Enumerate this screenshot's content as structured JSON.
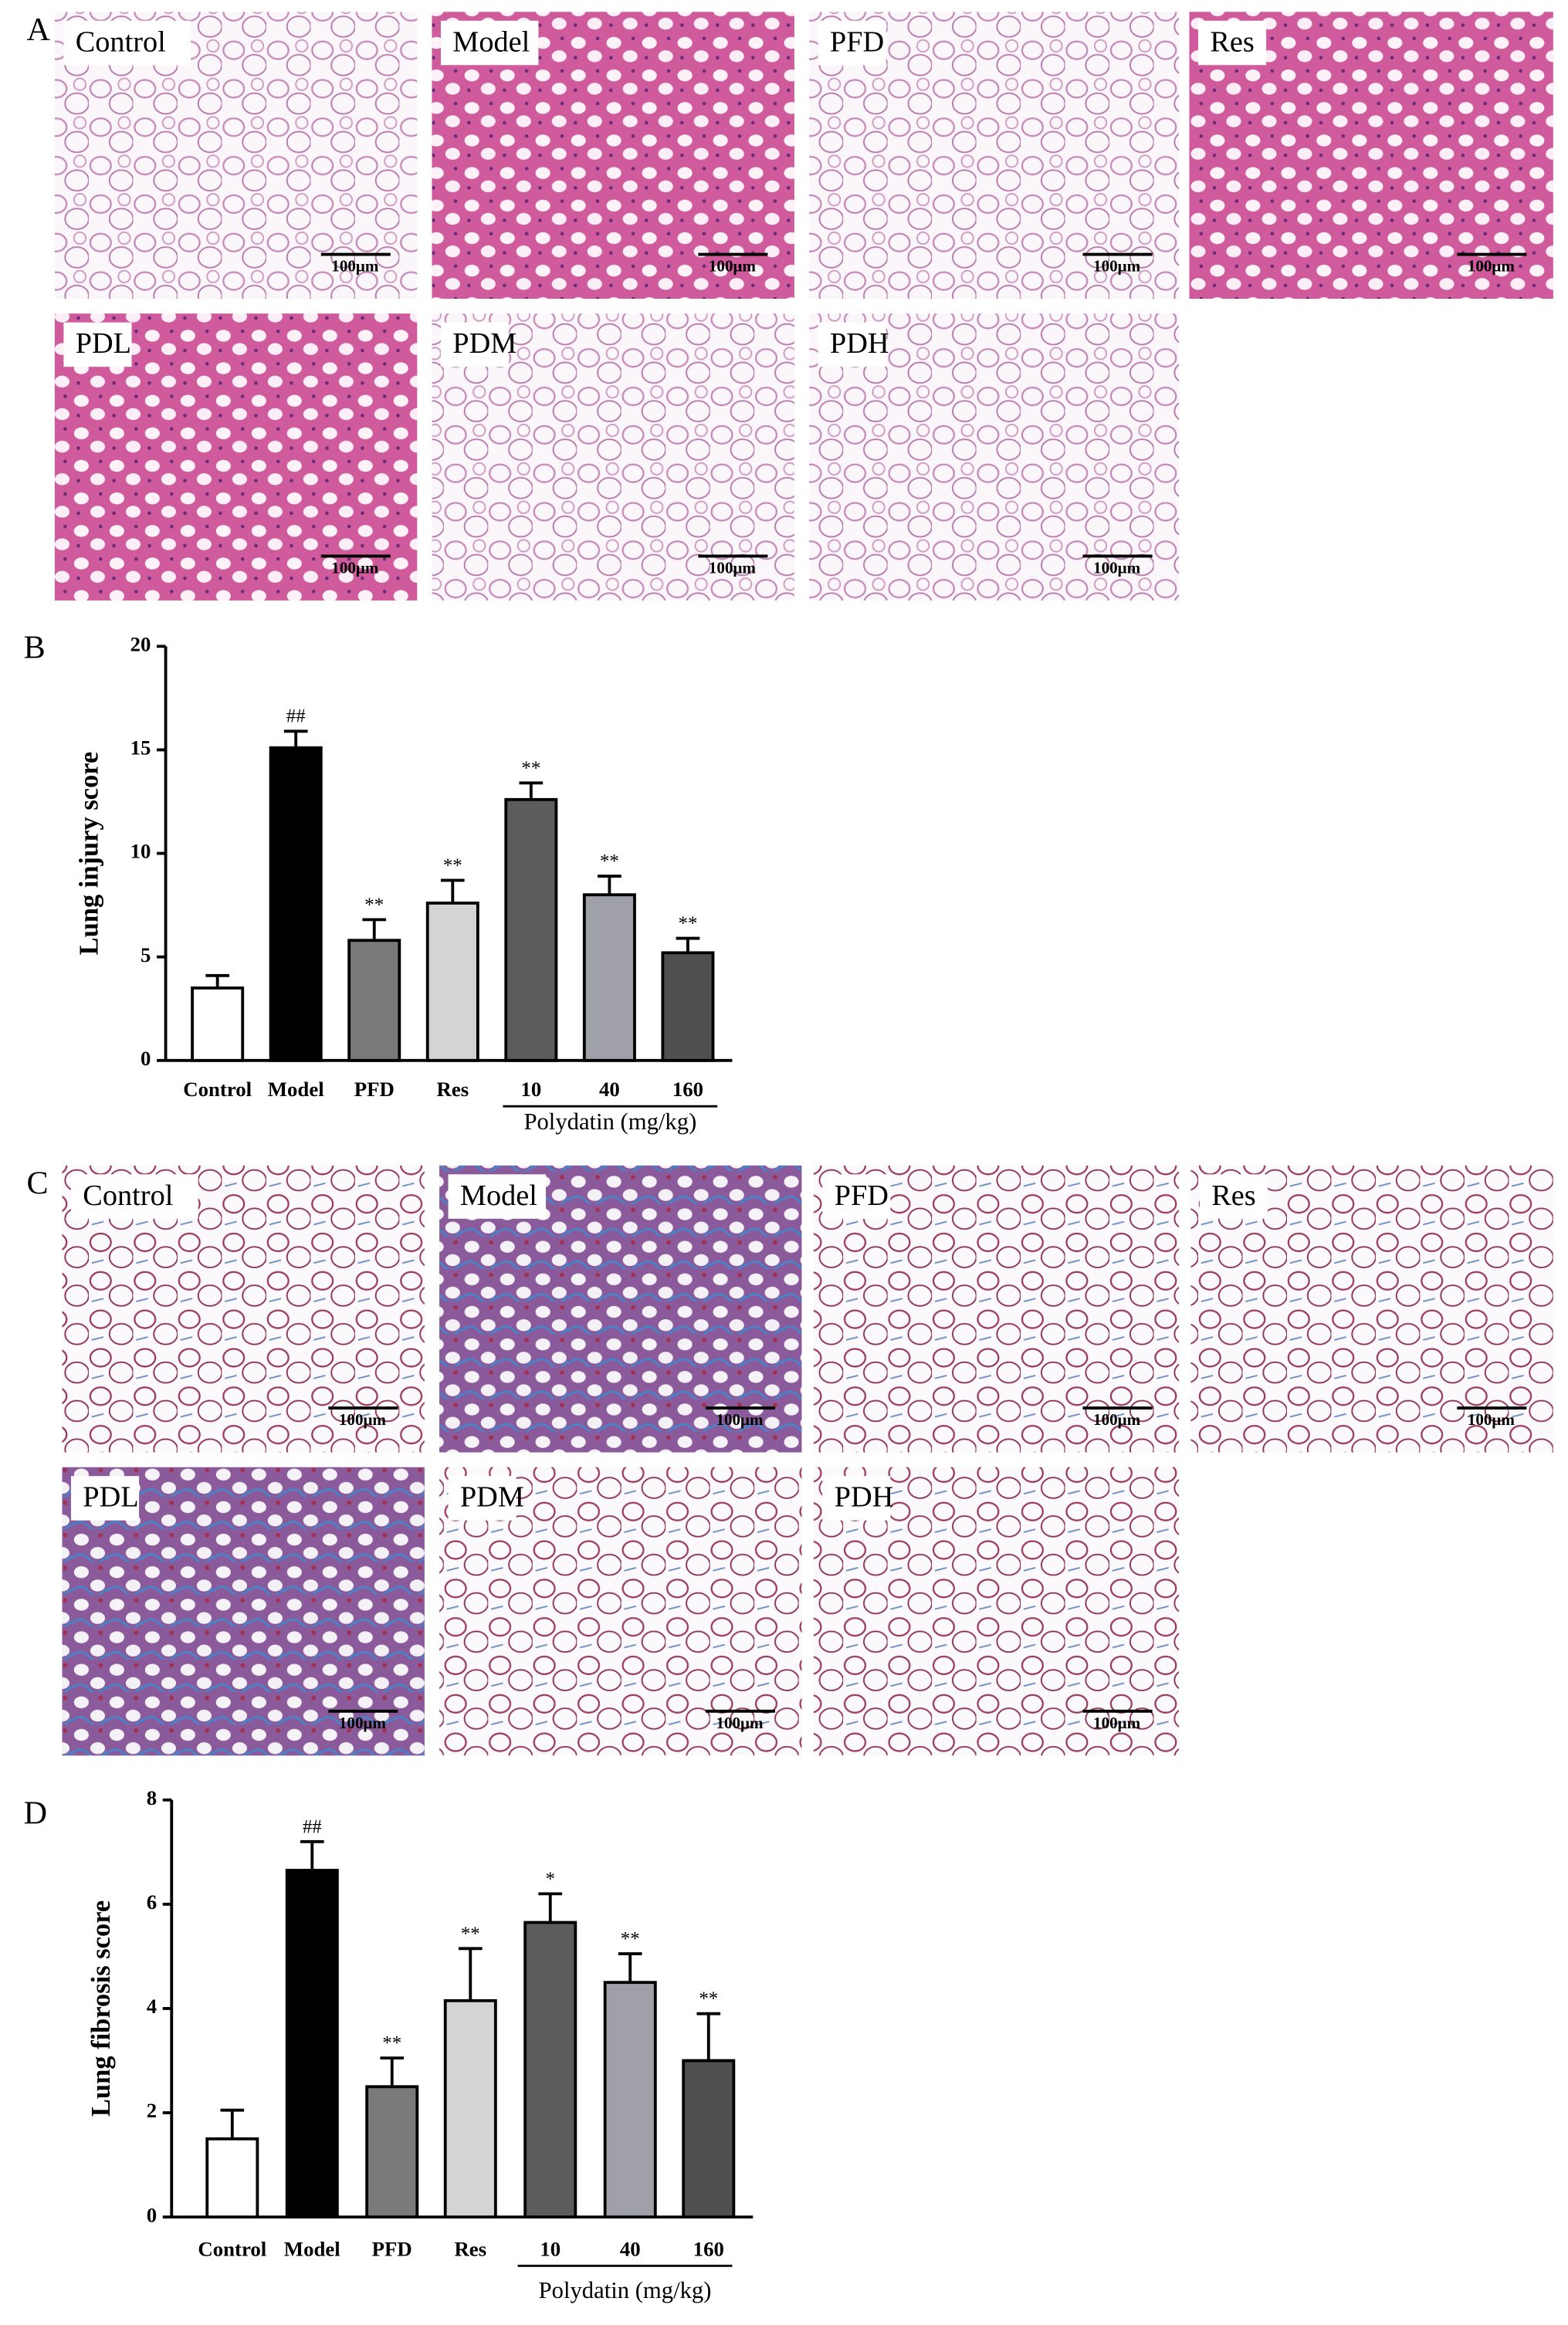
{
  "panel_letters": [
    "A",
    "B",
    "C",
    "D"
  ],
  "he_panels": [
    "Control",
    "Model",
    "PFD",
    "Res",
    "PDL",
    "PDM",
    "PDH"
  ],
  "masson_panels": [
    "Control",
    "Model",
    "PFD",
    "Res",
    "PDL",
    "PDM",
    "PDH"
  ],
  "scale_bar": "100μm",
  "chart_data": [
    {
      "type": "bar",
      "ylabel": "Lung injury score",
      "categories": [
        "Control",
        "Model",
        "PFD",
        "Res",
        "10",
        "40",
        "160"
      ],
      "group_label": "Polydatin (mg/kg)",
      "values": [
        3.5,
        15.1,
        5.8,
        7.6,
        12.6,
        8.0,
        5.2
      ],
      "errors": [
        0.6,
        0.8,
        1.0,
        1.1,
        0.8,
        0.9,
        0.7
      ],
      "annotations": [
        null,
        "##",
        "**",
        "**",
        "**",
        "**",
        "**"
      ],
      "colors": [
        "#ffffff",
        "#000000",
        "#7a7a7a",
        "#d4d4d4",
        "#5c5c5c",
        "#a0a0a8",
        "#505050"
      ],
      "ylim": [
        0,
        20
      ],
      "yticks": [
        0,
        5,
        10,
        15,
        20
      ]
    },
    {
      "type": "bar",
      "ylabel": "Lung fibrosis score",
      "categories": [
        "Control",
        "Model",
        "PFD",
        "Res",
        "10",
        "40",
        "160"
      ],
      "group_label": "Polydatin (mg/kg)",
      "values": [
        1.5,
        6.65,
        2.5,
        4.15,
        5.65,
        4.5,
        3.0
      ],
      "errors": [
        0.55,
        0.55,
        0.55,
        1.0,
        0.55,
        0.55,
        0.9
      ],
      "annotations": [
        null,
        "##",
        "**",
        "**",
        "*",
        "**",
        "**"
      ],
      "colors": [
        "#ffffff",
        "#000000",
        "#7a7a7a",
        "#d4d4d4",
        "#5c5c5c",
        "#a0a0a8",
        "#505050"
      ],
      "ylim": [
        0,
        8
      ],
      "yticks": [
        0,
        2,
        4,
        6,
        8
      ]
    }
  ]
}
